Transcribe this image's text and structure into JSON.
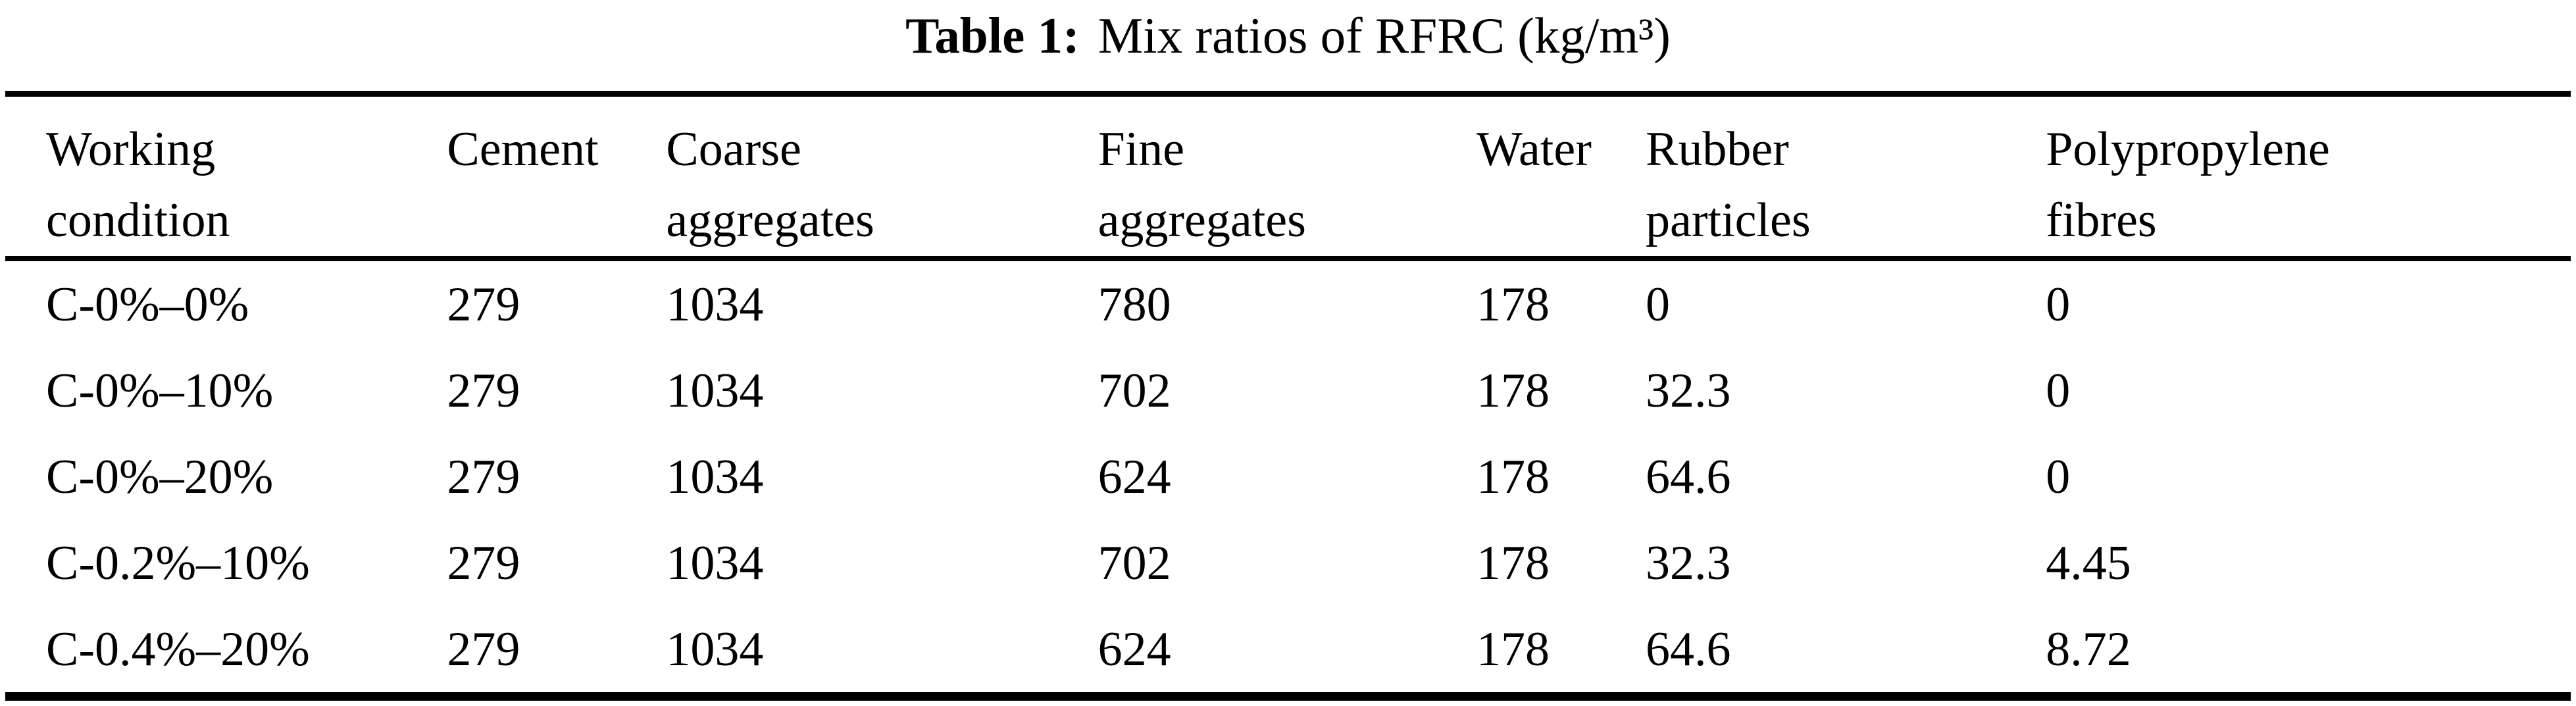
{
  "caption": {
    "label": "Table 1:",
    "text": "Mix ratios of RFRC (kg/m³)"
  },
  "table": {
    "columns": [
      "Working\ncondition",
      "Cement",
      "Coarse\naggregates",
      "Fine\naggregates",
      "Water",
      "Rubber\nparticles",
      "Polypropylene\nfibres"
    ],
    "rows": [
      [
        "C-0%–0%",
        "279",
        "1034",
        "780",
        "178",
        "0",
        "0"
      ],
      [
        "C-0%–10%",
        "279",
        "1034",
        "702",
        "178",
        "32.3",
        "0"
      ],
      [
        "C-0%–20%",
        "279",
        "1034",
        "624",
        "178",
        "64.6",
        "0"
      ],
      [
        "C-0.2%–10%",
        "279",
        "1034",
        "702",
        "178",
        "32.3",
        "4.45"
      ],
      [
        "C-0.4%–20%",
        "279",
        "1034",
        "624",
        "178",
        "64.6",
        "8.72"
      ]
    ]
  }
}
